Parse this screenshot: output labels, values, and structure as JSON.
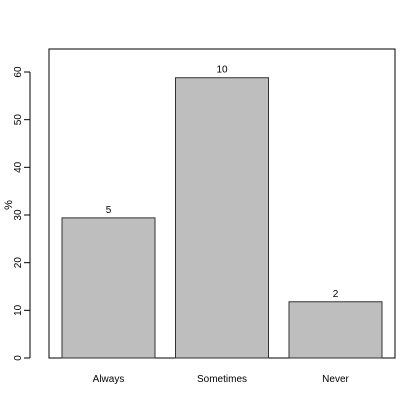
{
  "chart_data": {
    "type": "bar",
    "categories": [
      "Always",
      "Sometimes",
      "Never"
    ],
    "values": [
      29.4,
      58.8,
      11.8
    ],
    "data_labels": [
      "5",
      "10",
      "2"
    ],
    "title": "",
    "xlabel": "",
    "ylabel": "%",
    "ylim": [
      0,
      65
    ],
    "yticks": [
      0,
      10,
      20,
      30,
      40,
      50,
      60
    ],
    "grid": false,
    "bar_color": "#bebebe",
    "bar_border_color": "#333333"
  }
}
